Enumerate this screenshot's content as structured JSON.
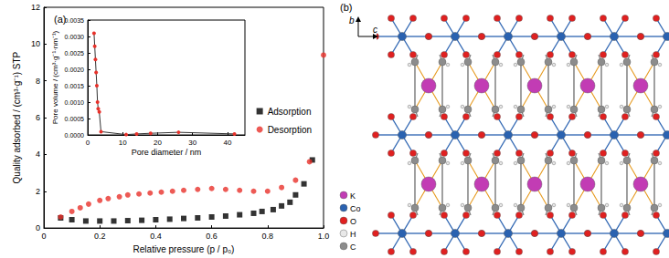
{
  "chart_data": [
    {
      "type": "scatter",
      "title": "(a)",
      "x_label": "Relative pressure (p / p₀)",
      "y_label": "Quality adsorbed / (cm³·g⁻¹) STP",
      "xlim": [
        0,
        1
      ],
      "xticks": [
        0,
        0.2,
        0.4,
        0.6,
        0.8,
        {
          "value": 1,
          "label": "1.0"
        }
      ],
      "ylim": [
        0,
        12
      ],
      "yticks": [
        0,
        2,
        4,
        6,
        8,
        10,
        12
      ],
      "grid": false,
      "legend": "right",
      "series": [
        {
          "name": "Adsorption",
          "color": "#000000",
          "marker": "square",
          "x": [
            0.06,
            0.1,
            0.15,
            0.2,
            0.25,
            0.3,
            0.35,
            0.4,
            0.45,
            0.5,
            0.55,
            0.6,
            0.65,
            0.7,
            0.75,
            0.78,
            0.82,
            0.85,
            0.88,
            0.9,
            0.93,
            0.96
          ],
          "values": [
            0.55,
            0.45,
            0.38,
            0.38,
            0.38,
            0.4,
            0.42,
            0.45,
            0.48,
            0.52,
            0.55,
            0.6,
            0.65,
            0.72,
            0.8,
            0.9,
            1.0,
            1.2,
            1.4,
            1.8,
            2.4,
            3.7
          ]
        },
        {
          "name": "Desorption",
          "color": "#e8312a",
          "marker": "circle",
          "x": [
            0.06,
            0.1,
            0.13,
            0.16,
            0.2,
            0.23,
            0.27,
            0.3,
            0.34,
            0.38,
            0.42,
            0.46,
            0.5,
            0.55,
            0.6,
            0.65,
            0.7,
            0.75,
            0.8,
            0.85,
            0.9,
            0.95,
            1.0
          ],
          "values": [
            0.6,
            0.9,
            1.1,
            1.3,
            1.5,
            1.6,
            1.7,
            1.8,
            1.85,
            1.9,
            1.95,
            2.0,
            2.05,
            2.1,
            2.15,
            2.1,
            2.05,
            2.0,
            2.0,
            2.2,
            2.6,
            3.6,
            9.4
          ]
        }
      ]
    },
    {
      "type": "line",
      "x_label": "Pore diameter / nm",
      "y_label": "Pore volume / (cm³·g⁻¹·nm⁻¹)",
      "xlim": [
        0,
        45
      ],
      "xticks": [
        0,
        10,
        20,
        30,
        40
      ],
      "ylim": [
        0,
        0.0035
      ],
      "yticks": [
        {
          "value": 0,
          "label": "0.0000"
        },
        0.0005,
        {
          "value": 0.001,
          "label": "0.0010"
        },
        0.0015,
        {
          "value": 0.002,
          "label": "0.0020"
        },
        0.0025,
        {
          "value": 0.003,
          "label": "0.0030"
        },
        0.0035
      ],
      "grid": false,
      "series": [
        {
          "color": "#e8312a",
          "marker": "circle",
          "line_style": "solid",
          "x": [
            1.8,
            2.0,
            2.2,
            2.4,
            2.6,
            2.8,
            3.0,
            3.3,
            3.8,
            11,
            14,
            18,
            26,
            42
          ],
          "values": [
            0.0031,
            0.0027,
            0.0023,
            0.0019,
            0.0015,
            0.001,
            0.0008,
            0.0007,
            0.0001,
            1e-05,
            3e-05,
            5e-05,
            8e-05,
            3e-05
          ]
        }
      ]
    }
  ],
  "diagram": {
    "label": "(b)",
    "axes": [
      "b",
      "c"
    ],
    "legend": [
      {
        "label": "K",
        "color": "#c23cb4"
      },
      {
        "label": "Co",
        "color": "#2a62b0"
      },
      {
        "label": "O",
        "color": "#e02020"
      },
      {
        "label": "H",
        "color": "#e8e8e8"
      },
      {
        "label": "C",
        "color": "#8c8c8c"
      }
    ],
    "bond_color": "#e69a1e"
  }
}
